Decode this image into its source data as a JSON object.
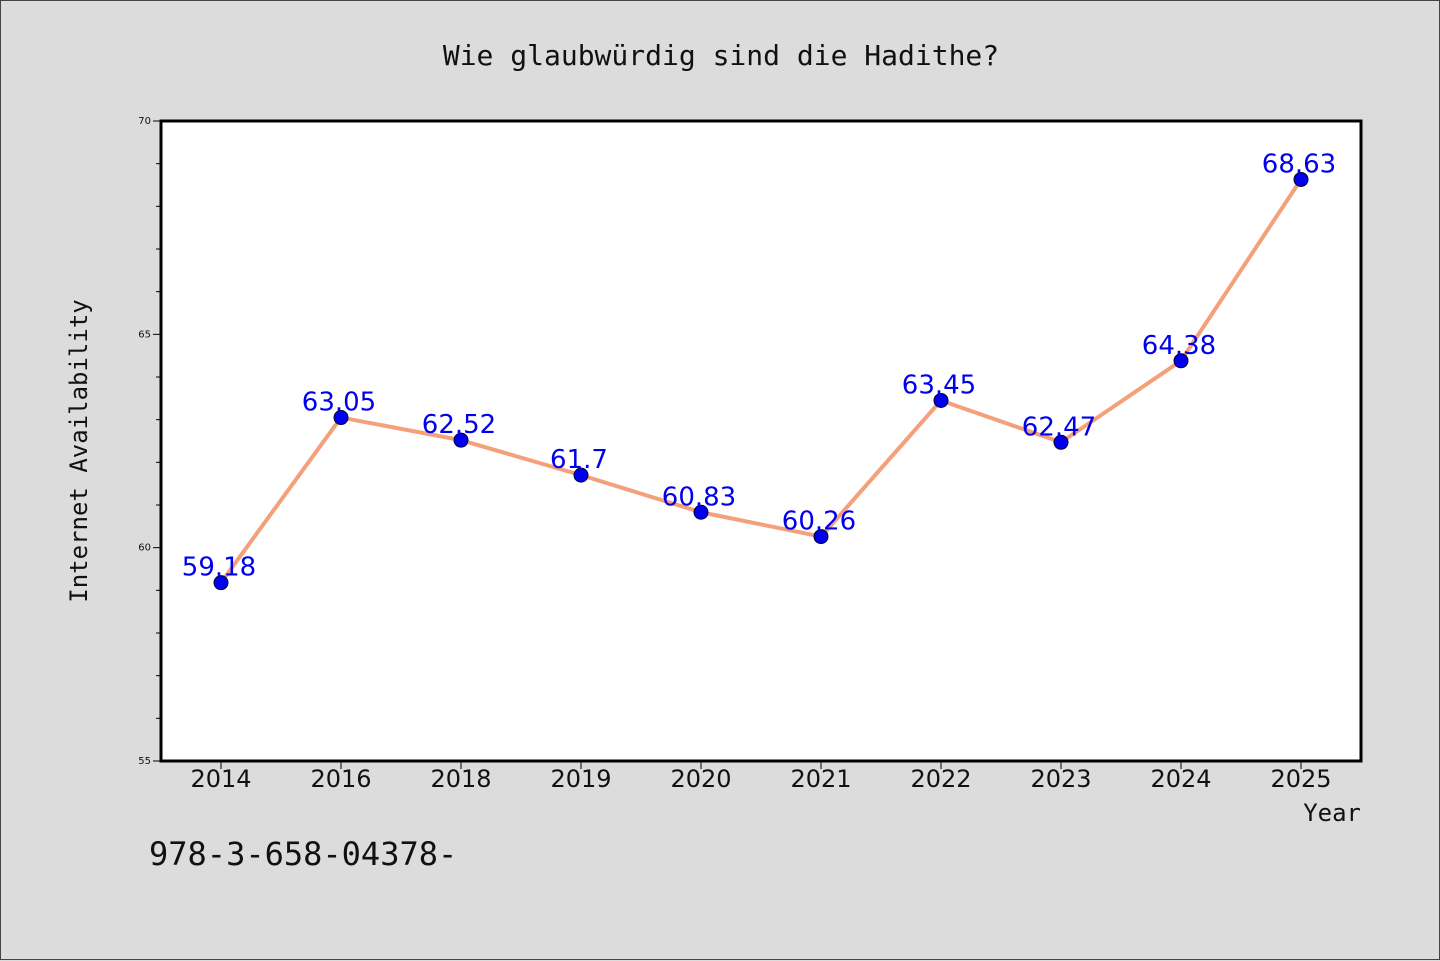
{
  "footer": {
    "text": "978-3-658-04378-"
  },
  "colors": {
    "background": "#dcdcdc",
    "plot_background": "#ffffff",
    "line": "#f4a07a",
    "marker": "#0000ee",
    "data_label": "#0000ee"
  },
  "chart_data": {
    "type": "line",
    "title": "Wie glaubwürdig sind die Hadithe?",
    "xlabel": "Year",
    "ylabel": "Internet Availability",
    "categories": [
      "2014",
      "2016",
      "2018",
      "2019",
      "2020",
      "2021",
      "2022",
      "2023",
      "2024",
      "2025"
    ],
    "series": [
      {
        "values": [
          59.18,
          63.05,
          62.52,
          61.7,
          60.83,
          60.26,
          63.45,
          62.47,
          64.38,
          68.63
        ],
        "labels": [
          "59.18",
          "63.05",
          "62.52",
          "61.7",
          "60.83",
          "60.26",
          "63.45",
          "62.47",
          "64.38",
          "68.63"
        ]
      }
    ],
    "ylim": [
      55,
      70
    ],
    "yticks": [
      "55",
      "60",
      "65",
      "70"
    ],
    "yminor_step": 1,
    "grid": false,
    "legend": false
  }
}
